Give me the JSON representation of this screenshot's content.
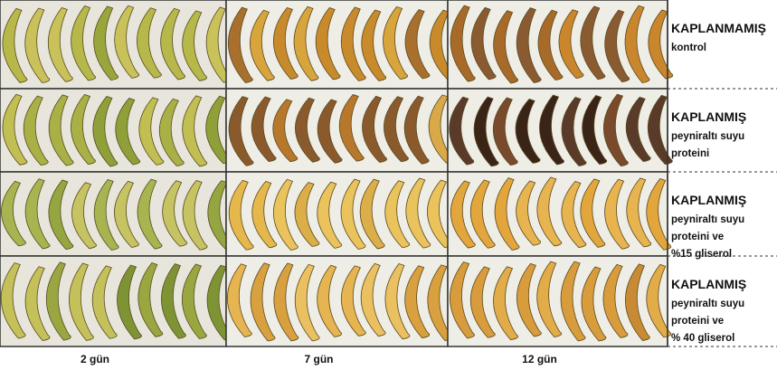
{
  "rows": [
    {
      "title": "KAPLANMAMIŞ",
      "lines": [
        "kontrol"
      ]
    },
    {
      "title": "KAPLANMIŞ",
      "lines": [
        "peyniraltı suyu",
        "proteini"
      ]
    },
    {
      "title": "KAPLANMIŞ",
      "lines": [
        "peyniraltı suyu",
        "proteini ve",
        "%15 gliserol"
      ]
    },
    {
      "title": "KAPLANMIŞ",
      "lines": [
        "peyniraltı suyu",
        "proteini ve",
        "% 40 gliserol"
      ]
    }
  ],
  "columns": [
    "2 gün",
    "7 gün",
    "12 gün"
  ]
}
